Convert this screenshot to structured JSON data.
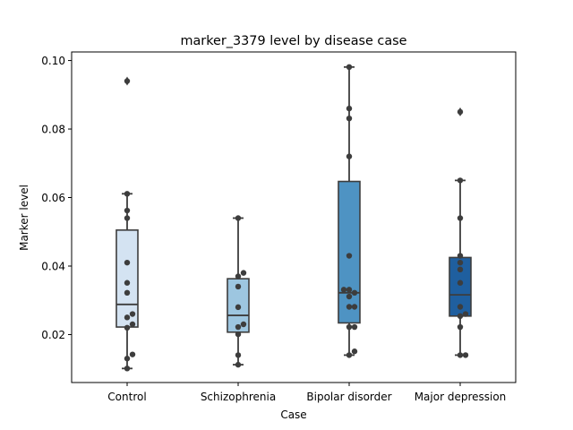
{
  "chart_data": {
    "type": "box",
    "title": "marker_3379 level by disease case",
    "xlabel": "Case",
    "ylabel": "Marker level",
    "ylim": [
      0.006,
      0.1025
    ],
    "yticks": [
      0.02,
      0.04,
      0.06,
      0.08,
      0.1
    ],
    "ytick_labels": [
      "0.02",
      "0.04",
      "0.06",
      "0.08",
      "0.10"
    ],
    "categories": [
      "Control",
      "Schizophrenia",
      "Bipolar disorder",
      "Major depression"
    ],
    "colors": [
      "#d4e3f2",
      "#9dc6e0",
      "#4e93c3",
      "#1f5f9f"
    ],
    "boxes": [
      {
        "category": "Control",
        "q1": 0.0222,
        "median": 0.0288,
        "q3": 0.0505,
        "whisker_low": 0.0101,
        "whisker_high": 0.0611,
        "outliers": [
          0.094
        ]
      },
      {
        "category": "Schizophrenia",
        "q1": 0.0207,
        "median": 0.0256,
        "q3": 0.0363,
        "whisker_low": 0.0112,
        "whisker_high": 0.054,
        "outliers": []
      },
      {
        "category": "Bipolar disorder",
        "q1": 0.0234,
        "median": 0.0322,
        "q3": 0.0647,
        "whisker_low": 0.014,
        "whisker_high": 0.0981,
        "outliers": []
      },
      {
        "category": "Major depression",
        "q1": 0.0254,
        "median": 0.0316,
        "q3": 0.0425,
        "whisker_low": 0.014,
        "whisker_high": 0.065,
        "outliers": [
          0.085
        ]
      }
    ],
    "points": [
      {
        "category": "Control",
        "values": [
          0.0101,
          0.013,
          0.0142,
          0.022,
          0.023,
          0.025,
          0.026,
          0.0322,
          0.0351,
          0.041,
          0.054,
          0.0562,
          0.0611,
          0.094
        ]
      },
      {
        "category": "Schizophrenia",
        "values": [
          0.0112,
          0.014,
          0.0201,
          0.0222,
          0.023,
          0.028,
          0.034,
          0.037,
          0.038,
          0.054
        ]
      },
      {
        "category": "Bipolar disorder",
        "values": [
          0.014,
          0.0151,
          0.0222,
          0.0222,
          0.0281,
          0.0281,
          0.0311,
          0.0322,
          0.0331,
          0.0331,
          0.043,
          0.072,
          0.0831,
          0.086,
          0.0981
        ]
      },
      {
        "category": "Major depression",
        "values": [
          0.014,
          0.014,
          0.0222,
          0.0254,
          0.026,
          0.0281,
          0.0351,
          0.039,
          0.041,
          0.043,
          0.054,
          0.065,
          0.085
        ]
      }
    ]
  }
}
